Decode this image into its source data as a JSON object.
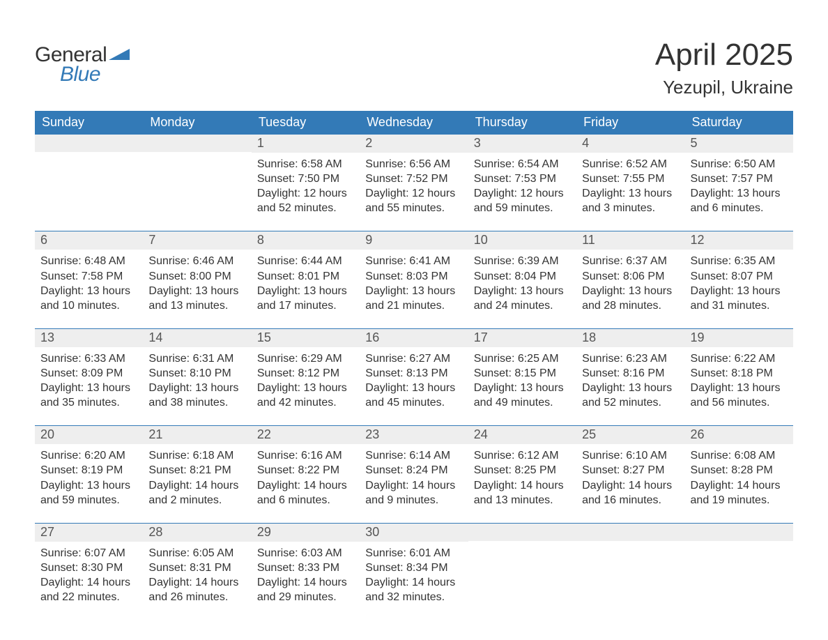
{
  "brand": {
    "line1": "General",
    "line2": "Blue"
  },
  "title": "April 2025",
  "location": "Yezupil, Ukraine",
  "colors": {
    "header_bg": "#337ab7",
    "header_fg": "#ffffff",
    "daynum_bg": "#eeeeee",
    "daynum_fg": "#555555",
    "body_fg": "#333333",
    "page_bg": "#ffffff",
    "rule": "#337ab7",
    "brand_blue": "#337ab7"
  },
  "fonts": {
    "title_pt": 44,
    "location_pt": 26,
    "header_pt": 18,
    "daynum_pt": 18,
    "body_pt": 16,
    "logo_pt": 30
  },
  "weekdays": [
    "Sunday",
    "Monday",
    "Tuesday",
    "Wednesday",
    "Thursday",
    "Friday",
    "Saturday"
  ],
  "weeks": [
    [
      {
        "n": "",
        "sunrise": "",
        "sunset": "",
        "dl1": "",
        "dl2": ""
      },
      {
        "n": "",
        "sunrise": "",
        "sunset": "",
        "dl1": "",
        "dl2": ""
      },
      {
        "n": "1",
        "sunrise": "Sunrise: 6:58 AM",
        "sunset": "Sunset: 7:50 PM",
        "dl1": "Daylight: 12 hours",
        "dl2": "and 52 minutes."
      },
      {
        "n": "2",
        "sunrise": "Sunrise: 6:56 AM",
        "sunset": "Sunset: 7:52 PM",
        "dl1": "Daylight: 12 hours",
        "dl2": "and 55 minutes."
      },
      {
        "n": "3",
        "sunrise": "Sunrise: 6:54 AM",
        "sunset": "Sunset: 7:53 PM",
        "dl1": "Daylight: 12 hours",
        "dl2": "and 59 minutes."
      },
      {
        "n": "4",
        "sunrise": "Sunrise: 6:52 AM",
        "sunset": "Sunset: 7:55 PM",
        "dl1": "Daylight: 13 hours",
        "dl2": "and 3 minutes."
      },
      {
        "n": "5",
        "sunrise": "Sunrise: 6:50 AM",
        "sunset": "Sunset: 7:57 PM",
        "dl1": "Daylight: 13 hours",
        "dl2": "and 6 minutes."
      }
    ],
    [
      {
        "n": "6",
        "sunrise": "Sunrise: 6:48 AM",
        "sunset": "Sunset: 7:58 PM",
        "dl1": "Daylight: 13 hours",
        "dl2": "and 10 minutes."
      },
      {
        "n": "7",
        "sunrise": "Sunrise: 6:46 AM",
        "sunset": "Sunset: 8:00 PM",
        "dl1": "Daylight: 13 hours",
        "dl2": "and 13 minutes."
      },
      {
        "n": "8",
        "sunrise": "Sunrise: 6:44 AM",
        "sunset": "Sunset: 8:01 PM",
        "dl1": "Daylight: 13 hours",
        "dl2": "and 17 minutes."
      },
      {
        "n": "9",
        "sunrise": "Sunrise: 6:41 AM",
        "sunset": "Sunset: 8:03 PM",
        "dl1": "Daylight: 13 hours",
        "dl2": "and 21 minutes."
      },
      {
        "n": "10",
        "sunrise": "Sunrise: 6:39 AM",
        "sunset": "Sunset: 8:04 PM",
        "dl1": "Daylight: 13 hours",
        "dl2": "and 24 minutes."
      },
      {
        "n": "11",
        "sunrise": "Sunrise: 6:37 AM",
        "sunset": "Sunset: 8:06 PM",
        "dl1": "Daylight: 13 hours",
        "dl2": "and 28 minutes."
      },
      {
        "n": "12",
        "sunrise": "Sunrise: 6:35 AM",
        "sunset": "Sunset: 8:07 PM",
        "dl1": "Daylight: 13 hours",
        "dl2": "and 31 minutes."
      }
    ],
    [
      {
        "n": "13",
        "sunrise": "Sunrise: 6:33 AM",
        "sunset": "Sunset: 8:09 PM",
        "dl1": "Daylight: 13 hours",
        "dl2": "and 35 minutes."
      },
      {
        "n": "14",
        "sunrise": "Sunrise: 6:31 AM",
        "sunset": "Sunset: 8:10 PM",
        "dl1": "Daylight: 13 hours",
        "dl2": "and 38 minutes."
      },
      {
        "n": "15",
        "sunrise": "Sunrise: 6:29 AM",
        "sunset": "Sunset: 8:12 PM",
        "dl1": "Daylight: 13 hours",
        "dl2": "and 42 minutes."
      },
      {
        "n": "16",
        "sunrise": "Sunrise: 6:27 AM",
        "sunset": "Sunset: 8:13 PM",
        "dl1": "Daylight: 13 hours",
        "dl2": "and 45 minutes."
      },
      {
        "n": "17",
        "sunrise": "Sunrise: 6:25 AM",
        "sunset": "Sunset: 8:15 PM",
        "dl1": "Daylight: 13 hours",
        "dl2": "and 49 minutes."
      },
      {
        "n": "18",
        "sunrise": "Sunrise: 6:23 AM",
        "sunset": "Sunset: 8:16 PM",
        "dl1": "Daylight: 13 hours",
        "dl2": "and 52 minutes."
      },
      {
        "n": "19",
        "sunrise": "Sunrise: 6:22 AM",
        "sunset": "Sunset: 8:18 PM",
        "dl1": "Daylight: 13 hours",
        "dl2": "and 56 minutes."
      }
    ],
    [
      {
        "n": "20",
        "sunrise": "Sunrise: 6:20 AM",
        "sunset": "Sunset: 8:19 PM",
        "dl1": "Daylight: 13 hours",
        "dl2": "and 59 minutes."
      },
      {
        "n": "21",
        "sunrise": "Sunrise: 6:18 AM",
        "sunset": "Sunset: 8:21 PM",
        "dl1": "Daylight: 14 hours",
        "dl2": "and 2 minutes."
      },
      {
        "n": "22",
        "sunrise": "Sunrise: 6:16 AM",
        "sunset": "Sunset: 8:22 PM",
        "dl1": "Daylight: 14 hours",
        "dl2": "and 6 minutes."
      },
      {
        "n": "23",
        "sunrise": "Sunrise: 6:14 AM",
        "sunset": "Sunset: 8:24 PM",
        "dl1": "Daylight: 14 hours",
        "dl2": "and 9 minutes."
      },
      {
        "n": "24",
        "sunrise": "Sunrise: 6:12 AM",
        "sunset": "Sunset: 8:25 PM",
        "dl1": "Daylight: 14 hours",
        "dl2": "and 13 minutes."
      },
      {
        "n": "25",
        "sunrise": "Sunrise: 6:10 AM",
        "sunset": "Sunset: 8:27 PM",
        "dl1": "Daylight: 14 hours",
        "dl2": "and 16 minutes."
      },
      {
        "n": "26",
        "sunrise": "Sunrise: 6:08 AM",
        "sunset": "Sunset: 8:28 PM",
        "dl1": "Daylight: 14 hours",
        "dl2": "and 19 minutes."
      }
    ],
    [
      {
        "n": "27",
        "sunrise": "Sunrise: 6:07 AM",
        "sunset": "Sunset: 8:30 PM",
        "dl1": "Daylight: 14 hours",
        "dl2": "and 22 minutes."
      },
      {
        "n": "28",
        "sunrise": "Sunrise: 6:05 AM",
        "sunset": "Sunset: 8:31 PM",
        "dl1": "Daylight: 14 hours",
        "dl2": "and 26 minutes."
      },
      {
        "n": "29",
        "sunrise": "Sunrise: 6:03 AM",
        "sunset": "Sunset: 8:33 PM",
        "dl1": "Daylight: 14 hours",
        "dl2": "and 29 minutes."
      },
      {
        "n": "30",
        "sunrise": "Sunrise: 6:01 AM",
        "sunset": "Sunset: 8:34 PM",
        "dl1": "Daylight: 14 hours",
        "dl2": "and 32 minutes."
      },
      {
        "n": "",
        "sunrise": "",
        "sunset": "",
        "dl1": "",
        "dl2": ""
      },
      {
        "n": "",
        "sunrise": "",
        "sunset": "",
        "dl1": "",
        "dl2": ""
      },
      {
        "n": "",
        "sunrise": "",
        "sunset": "",
        "dl1": "",
        "dl2": ""
      }
    ]
  ]
}
